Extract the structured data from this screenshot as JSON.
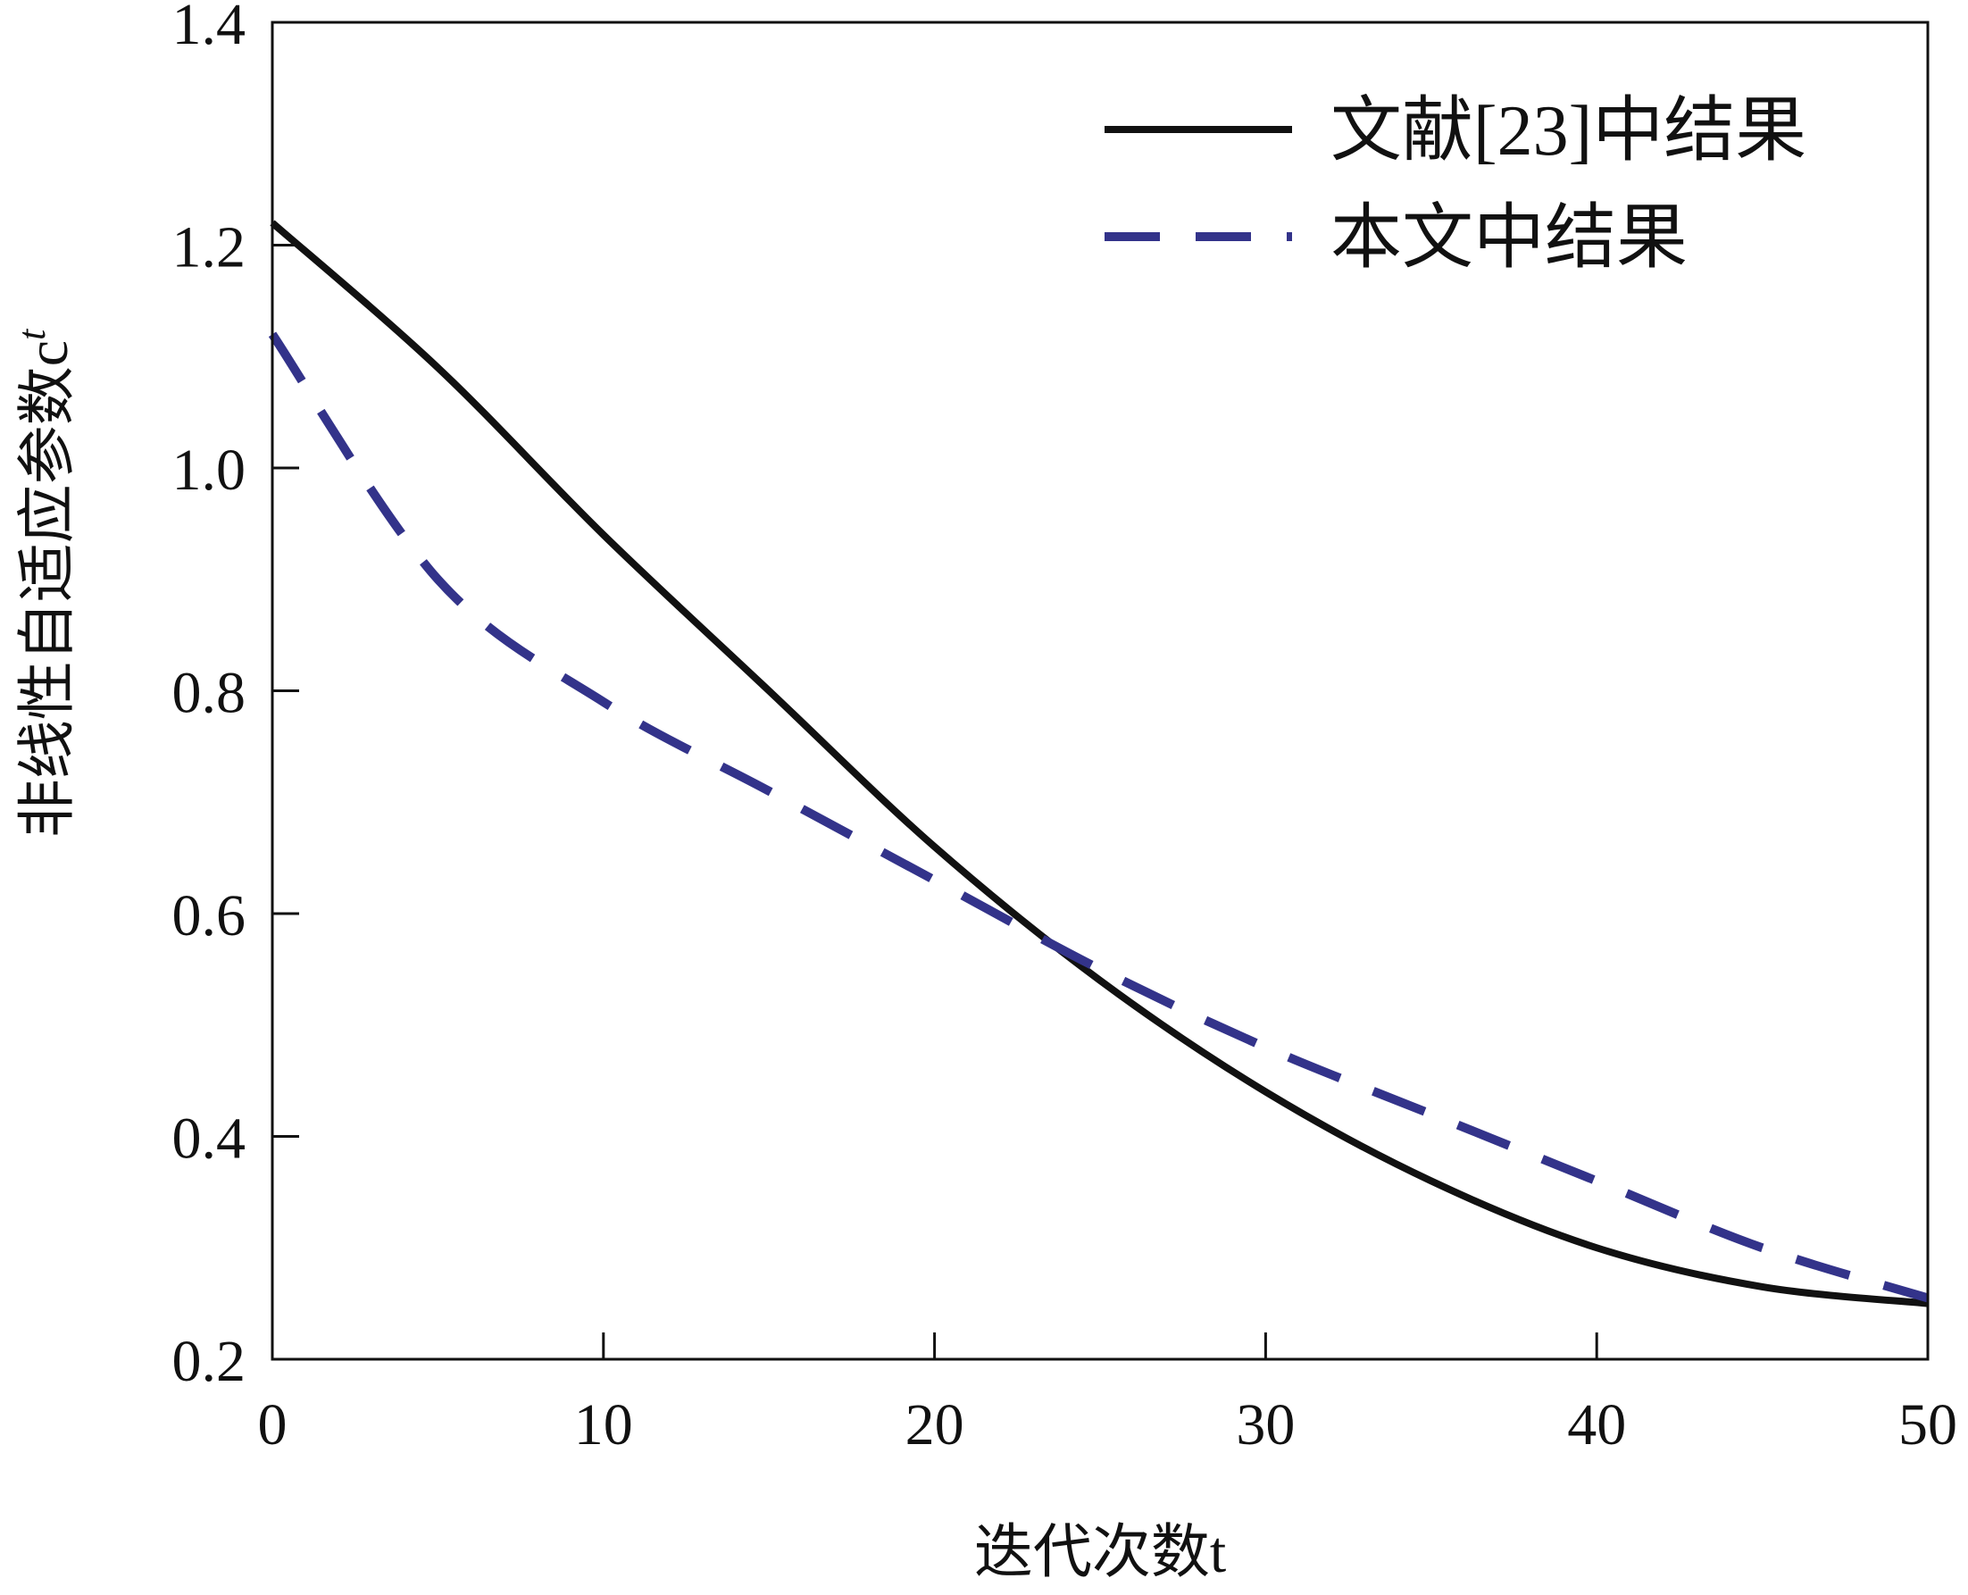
{
  "chart_data": {
    "type": "line",
    "title": "",
    "xlabel": "迭代次数t",
    "ylabel": "非线性自适应参数c^t",
    "xlim": [
      0,
      50
    ],
    "ylim": [
      0.2,
      1.4
    ],
    "xticks": [
      "0",
      "10",
      "20",
      "30",
      "40",
      "50"
    ],
    "yticks": [
      "0.2",
      "0.4",
      "0.6",
      "0.8",
      "1.0",
      "1.2",
      "1.4"
    ],
    "grid": false,
    "legend_position": "top-right",
    "x": [
      0,
      5,
      10,
      15,
      20,
      25,
      30,
      35,
      40,
      45,
      50
    ],
    "series": [
      {
        "name": "文献[23]中结果",
        "style": "solid",
        "color": "#111111",
        "values": [
          1.22,
          1.09,
          0.94,
          0.8,
          0.66,
          0.54,
          0.44,
          0.36,
          0.3,
          0.265,
          0.25
        ]
      },
      {
        "name": "本文中结果",
        "style": "dashed",
        "color": "#33338a",
        "values": [
          1.12,
          0.9,
          0.79,
          0.71,
          0.63,
          0.55,
          0.48,
          0.42,
          0.36,
          0.3,
          0.255
        ]
      }
    ]
  }
}
